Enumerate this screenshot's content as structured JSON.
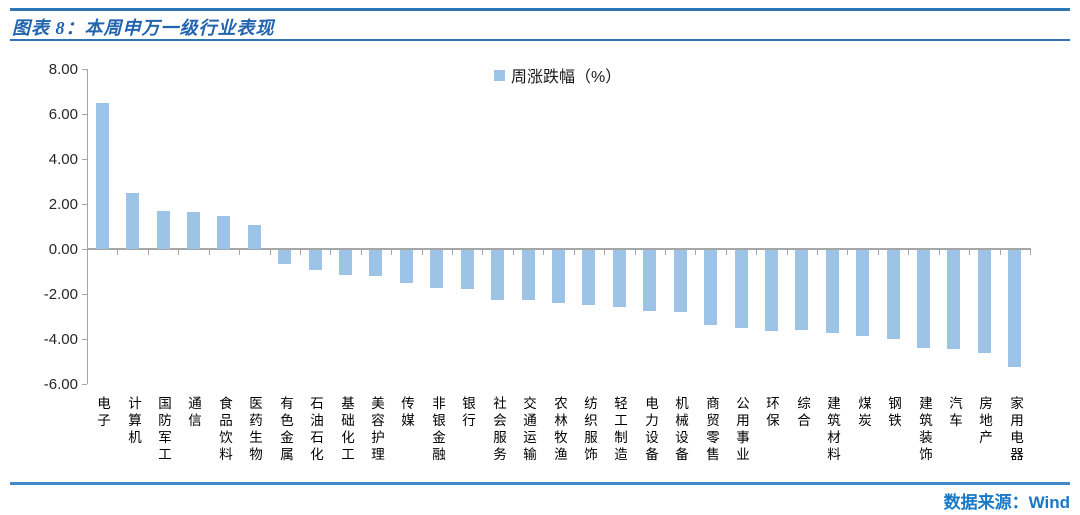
{
  "header": {
    "title": "图表 8：本周申万一级行业表现"
  },
  "legend": {
    "label": "周涨跌幅（%）",
    "swatch_color": "#9DC3E6"
  },
  "footer": {
    "source": "数据来源：Wind"
  },
  "colors": {
    "accent_blue": "#2E75B6",
    "bar": "#9DC3E6",
    "axis_gray": "#A6A6A6",
    "title_blue": "#2264AE",
    "source_blue": "#1878C8"
  },
  "chart_data": {
    "type": "bar",
    "title": "图表 8：本周申万一级行业表现",
    "legend": [
      "周涨跌幅（%）"
    ],
    "legend_position": "top-center",
    "grid": false,
    "ylabel": "",
    "xlabel": "",
    "ylim": [
      -6,
      8
    ],
    "ytick_step": 2,
    "ytick_labels": [
      "8.00",
      "6.00",
      "4.00",
      "2.00",
      "0.00",
      "-2.00",
      "-4.00",
      "-6.00"
    ],
    "bar_color": "#9DC3E6",
    "categories": [
      "电子",
      "计算机",
      "国防军工",
      "通信",
      "食品饮料",
      "医药生物",
      "有色金属",
      "石油石化",
      "基础化工",
      "美容护理",
      "传媒",
      "非银金融",
      "银行",
      "社会服务",
      "交通运输",
      "农林牧渔",
      "纺织服饰",
      "轻工制造",
      "电力设备",
      "机械设备",
      "商贸零售",
      "公用事业",
      "环保",
      "综合",
      "建筑材料",
      "煤炭",
      "钢铁",
      "建筑装饰",
      "汽车",
      "房地产",
      "家用电器"
    ],
    "values": [
      6.5,
      2.5,
      1.7,
      1.65,
      1.45,
      1.05,
      -0.6,
      -0.9,
      -1.1,
      -1.15,
      -1.45,
      -1.7,
      -1.75,
      -2.2,
      -2.2,
      -2.35,
      -2.45,
      -2.55,
      -2.7,
      -2.75,
      -3.35,
      -3.45,
      -3.6,
      -3.55,
      -3.7,
      -3.8,
      -3.95,
      -4.35,
      -4.4,
      -4.6,
      -5.2
    ]
  }
}
